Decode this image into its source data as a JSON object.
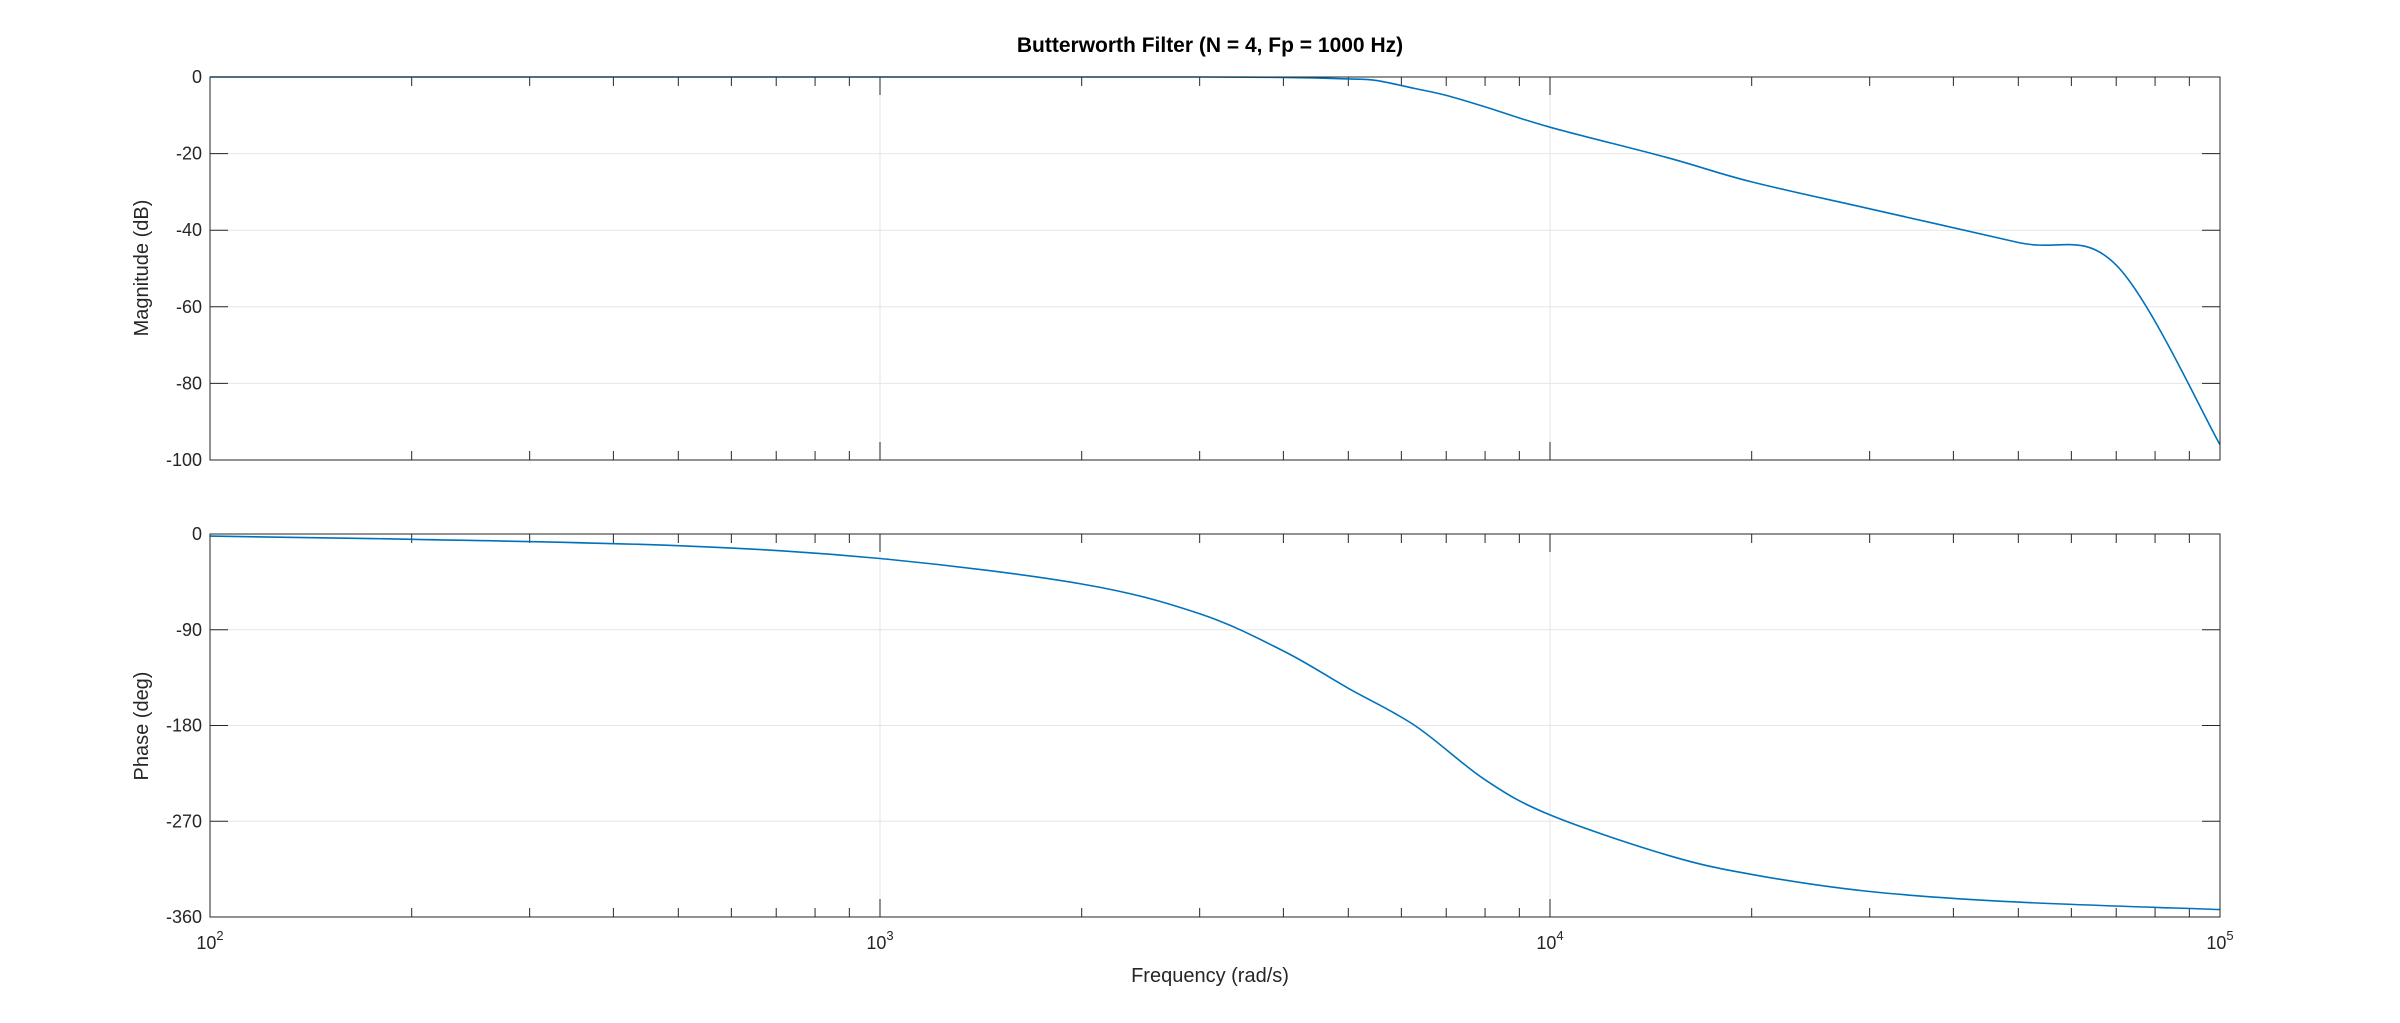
{
  "chart_data": {
    "type": "line",
    "title": "Butterworth Filter (N = 4, Fp = 1000 Hz)",
    "xlabel": "Frequency (rad/s)",
    "x_scale": "log",
    "xlim": [
      100,
      100000
    ],
    "x_ticks": [
      {
        "value": 100,
        "base": "10",
        "exp": "2"
      },
      {
        "value": 1000,
        "base": "10",
        "exp": "3"
      },
      {
        "value": 10000,
        "base": "10",
        "exp": "4"
      },
      {
        "value": 100000,
        "base": "10",
        "exp": "5"
      }
    ],
    "grid": true,
    "line_color": "#0072BD",
    "subplots": [
      {
        "name": "magnitude",
        "ylabel": "Magnitude (dB)",
        "ylim": [
          -100,
          0
        ],
        "yticks": [
          0,
          -20,
          -40,
          -60,
          -80,
          -100
        ],
        "ytick_labels": [
          "0",
          "-20",
          "-40",
          "-60",
          "-80",
          "-100"
        ],
        "x": [
          100,
          1000,
          2000,
          3000,
          4000,
          5000,
          5500,
          6283,
          7000,
          8000,
          10000,
          15000,
          20000,
          30000,
          50000,
          70000,
          100000
        ],
        "y": [
          0,
          0,
          0,
          -0.01,
          -0.1,
          -0.5,
          -0.9,
          -3.0,
          -4.8,
          -7.8,
          -13.1,
          -21.1,
          -27.4,
          -34.4,
          -43.2,
          -49.1,
          -96
        ]
      },
      {
        "name": "phase",
        "ylabel": "Phase (deg)",
        "ylim": [
          -360,
          0
        ],
        "yticks": [
          0,
          -90,
          -180,
          -270,
          -360
        ],
        "ytick_labels": [
          "0",
          "-90",
          "-180",
          "-270",
          "-360"
        ],
        "x": [
          100,
          200,
          500,
          1000,
          2000,
          3000,
          4000,
          5000,
          6283,
          8000,
          10000,
          15000,
          20000,
          30000,
          50000,
          100000
        ],
        "y": [
          -2,
          -5,
          -11,
          -23,
          -47,
          -75,
          -110,
          -145,
          -180,
          -231,
          -264,
          -302,
          -320,
          -336,
          -346,
          -353
        ]
      }
    ]
  }
}
